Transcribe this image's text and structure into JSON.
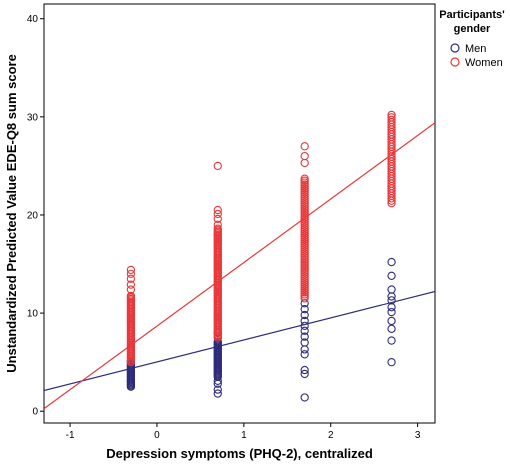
{
  "chart_data": {
    "type": "scatter",
    "xlabel": "Depression symptoms (PHQ-2), centralized",
    "ylabel": "Unstandardized Predicted Value EDE-Q8 sum score",
    "xlim": [
      -1.3,
      3.2
    ],
    "ylim": [
      -1.2,
      41.5
    ],
    "x_ticks": [
      -1,
      0,
      1,
      2,
      3
    ],
    "y_ticks": [
      0,
      10,
      20,
      30,
      40
    ],
    "grid": false,
    "legend": {
      "title": "Participants' gender",
      "title_lines": [
        "Participants'",
        "gender"
      ],
      "placement": "right",
      "entries": [
        "Men",
        "Women"
      ]
    },
    "series": [
      {
        "name": "Men",
        "color": "#2e2c7a",
        "points": [
          {
            "x": -0.3,
            "y_range": [
              2.5,
              5.2
            ],
            "step": 0.12
          },
          {
            "x": 0.7,
            "y_range": [
              3.5,
              7.2
            ],
            "step": 0.12
          },
          {
            "x": 0.7,
            "y_values": [
              1.8,
              2.2,
              2.8,
              3.1,
              7.5,
              8.0
            ]
          },
          {
            "x": 1.7,
            "y_values": [
              1.4,
              3.8,
              4.2,
              5.8,
              6.3,
              7.0,
              7.6,
              8.2,
              8.7,
              9.2,
              9.8,
              10.4,
              11.0
            ]
          },
          {
            "x": 2.7,
            "y_values": [
              5.0,
              7.2,
              8.4,
              9.2,
              10.1,
              10.6,
              11.3,
              11.7,
              12.4,
              13.8,
              15.2
            ]
          }
        ],
        "fit_line": {
          "x": [
            -1.3,
            3.2
          ],
          "y": [
            2.11,
            12.2
          ]
        }
      },
      {
        "name": "Women",
        "color": "#e8383b",
        "points": [
          {
            "x": -0.3,
            "y_range": [
              5.0,
              11.8
            ],
            "step": 0.15
          },
          {
            "x": -0.3,
            "y_values": [
              12.4,
              12.9,
              13.5,
              14.0,
              14.4
            ]
          },
          {
            "x": 0.7,
            "y_range": [
              7.5,
              18.6
            ],
            "step": 0.15
          },
          {
            "x": 0.7,
            "y_values": [
              19.0,
              19.6,
              20.1,
              20.5,
              25.0
            ]
          },
          {
            "x": 1.7,
            "y_range": [
              11.5,
              23.8
            ],
            "step": 0.2
          },
          {
            "x": 1.7,
            "y_values": [
              25.3,
              26.0,
              27.0
            ]
          },
          {
            "x": 2.7,
            "y_range": [
              21.2,
              30.4
            ],
            "step": 0.25
          }
        ],
        "fit_line": {
          "x": [
            -1.3,
            3.2
          ],
          "y": [
            0.26,
            29.4
          ]
        }
      }
    ]
  }
}
